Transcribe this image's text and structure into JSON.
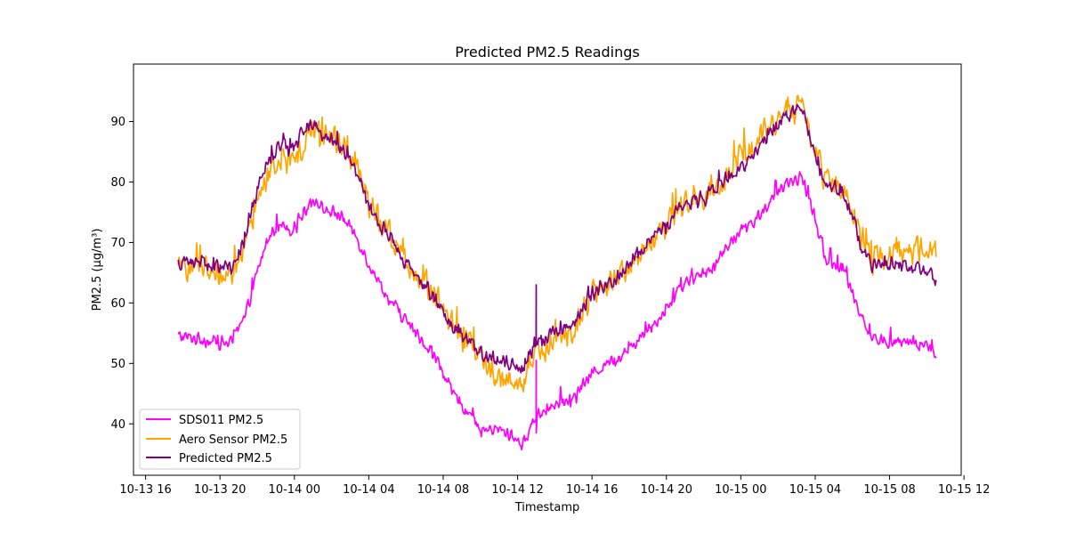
{
  "chart_data": {
    "type": "line",
    "title": "Predicted PM2.5 Readings",
    "xlabel": "Timestamp",
    "ylabel": "PM2.5 (µg/m³)",
    "x_unit": "hours",
    "xlim": [
      "10-13 15:21",
      "10-15 11:51"
    ],
    "ylim": [
      31.5,
      99.5
    ],
    "x_ticks": [
      {
        "t": "10-13 16:00",
        "label": "10-13 16"
      },
      {
        "t": "10-13 20:00",
        "label": "10-13 20"
      },
      {
        "t": "10-14 00:00",
        "label": "10-14 00"
      },
      {
        "t": "10-14 04:00",
        "label": "10-14 04"
      },
      {
        "t": "10-14 08:00",
        "label": "10-14 08"
      },
      {
        "t": "10-14 12:00",
        "label": "10-14 12"
      },
      {
        "t": "10-14 16:00",
        "label": "10-14 16"
      },
      {
        "t": "10-14 20:00",
        "label": "10-14 20"
      },
      {
        "t": "10-15 00:00",
        "label": "10-15 00"
      },
      {
        "t": "10-15 04:00",
        "label": "10-15 04"
      },
      {
        "t": "10-15 08:00",
        "label": "10-15 08"
      },
      {
        "t": "10-15 12:00",
        "label": "10-15 12"
      }
    ],
    "y_ticks": [
      40,
      50,
      60,
      70,
      80,
      90
    ],
    "grid": false,
    "legend_position": "lower-left",
    "series": [
      {
        "name": "SDS011 PM2.5",
        "color": "#ff00ff",
        "noise": 1.3,
        "points": [
          [
            "10-13 17:45",
            54.5
          ],
          [
            "10-13 19:00",
            54.0
          ],
          [
            "10-13 20:15",
            53.3
          ],
          [
            "10-13 20:40",
            53.5
          ],
          [
            "10-13 21:20",
            57.5
          ],
          [
            "10-13 22:00",
            65.0
          ],
          [
            "10-13 22:30",
            70.0
          ],
          [
            "10-13 23:00",
            72.5
          ],
          [
            "10-13 23:30",
            73.0
          ],
          [
            "10-13 23:50",
            72.0
          ],
          [
            "10-14 00:30",
            75.0
          ],
          [
            "10-14 01:00",
            77.5
          ],
          [
            "10-14 01:30",
            75.5
          ],
          [
            "10-14 02:30",
            74.5
          ],
          [
            "10-14 03:20",
            71.0
          ],
          [
            "10-14 04:00",
            66.5
          ],
          [
            "10-14 05:00",
            61.0
          ],
          [
            "10-14 06:00",
            57.0
          ],
          [
            "10-14 06:30",
            55.0
          ],
          [
            "10-14 07:30",
            51.5
          ],
          [
            "10-14 08:30",
            45.0
          ],
          [
            "10-14 09:30",
            41.5
          ],
          [
            "10-14 10:00",
            39.0
          ],
          [
            "10-14 11:00",
            39.0
          ],
          [
            "10-14 12:00",
            37.5
          ],
          [
            "10-14 12:15",
            36.0
          ],
          [
            "10-14 12:30",
            38.0
          ],
          [
            "10-14 13:00",
            41.5
          ],
          [
            "10-14 14:00",
            43.0
          ],
          [
            "10-14 15:00",
            44.0
          ],
          [
            "10-14 16:00",
            48.5
          ],
          [
            "10-14 17:00",
            50.0
          ],
          [
            "10-14 18:00",
            52.5
          ],
          [
            "10-14 19:00",
            55.5
          ],
          [
            "10-14 20:00",
            59.0
          ],
          [
            "10-14 21:00",
            63.5
          ],
          [
            "10-14 22:00",
            64.5
          ],
          [
            "10-14 23:00",
            68.0
          ],
          [
            "10-15 00:00",
            72.0
          ],
          [
            "10-15 00:45",
            73.5
          ],
          [
            "10-15 01:30",
            76.5
          ],
          [
            "10-15 02:30",
            79.5
          ],
          [
            "10-15 03:15",
            81.0
          ],
          [
            "10-15 04:00",
            74.0
          ],
          [
            "10-15 04:30",
            67.5
          ],
          [
            "10-15 05:30",
            65.5
          ],
          [
            "10-15 06:30",
            58.0
          ],
          [
            "10-15 07:00",
            54.0
          ],
          [
            "10-15 08:00",
            53.5
          ],
          [
            "10-15 09:00",
            53.5
          ],
          [
            "10-15 10:00",
            53.0
          ],
          [
            "10-15 10:30",
            51.5
          ]
        ],
        "spikes": [
          {
            "t": "10-14 13:00",
            "min": 38.5,
            "max": 50.5
          }
        ]
      },
      {
        "name": "Aero Sensor PM2.5",
        "color": "#ffa500",
        "noise": 2.6,
        "points": [
          [
            "10-13 17:45",
            65.5
          ],
          [
            "10-13 19:00",
            66.5
          ],
          [
            "10-13 20:15",
            64.5
          ],
          [
            "10-13 20:40",
            65.0
          ],
          [
            "10-13 21:20",
            68.5
          ],
          [
            "10-13 22:00",
            76.0
          ],
          [
            "10-13 22:30",
            80.5
          ],
          [
            "10-13 23:00",
            83.0
          ],
          [
            "10-13 23:30",
            84.0
          ],
          [
            "10-13 23:50",
            82.5
          ],
          [
            "10-14 00:30",
            86.5
          ],
          [
            "10-14 01:00",
            89.5
          ],
          [
            "10-14 01:30",
            87.5
          ],
          [
            "10-14 02:30",
            86.5
          ],
          [
            "10-14 03:20",
            83.0
          ],
          [
            "10-14 04:00",
            76.0
          ],
          [
            "10-14 05:00",
            72.0
          ],
          [
            "10-14 06:00",
            67.0
          ],
          [
            "10-14 06:30",
            65.0
          ],
          [
            "10-14 07:30",
            62.0
          ],
          [
            "10-14 08:30",
            56.0
          ],
          [
            "10-14 09:30",
            53.0
          ],
          [
            "10-14 10:00",
            50.5
          ],
          [
            "10-14 11:00",
            48.0
          ],
          [
            "10-14 12:00",
            46.5
          ],
          [
            "10-14 12:15",
            45.0
          ],
          [
            "10-14 12:30",
            48.0
          ],
          [
            "10-14 13:00",
            52.0
          ],
          [
            "10-14 14:00",
            53.5
          ],
          [
            "10-14 15:00",
            55.5
          ],
          [
            "10-14 16:00",
            61.5
          ],
          [
            "10-14 17:00",
            63.5
          ],
          [
            "10-14 18:00",
            66.0
          ],
          [
            "10-14 19:00",
            69.5
          ],
          [
            "10-14 20:00",
            73.0
          ],
          [
            "10-14 21:00",
            76.5
          ],
          [
            "10-14 22:00",
            77.5
          ],
          [
            "10-14 23:00",
            80.0
          ],
          [
            "10-15 00:00",
            84.0
          ],
          [
            "10-15 00:45",
            86.0
          ],
          [
            "10-15 01:30",
            89.5
          ],
          [
            "10-15 02:30",
            91.5
          ],
          [
            "10-15 03:15",
            92.5
          ],
          [
            "10-15 04:00",
            86.0
          ],
          [
            "10-15 04:30",
            80.5
          ],
          [
            "10-15 05:30",
            79.5
          ],
          [
            "10-15 06:30",
            71.0
          ],
          [
            "10-15 07:00",
            67.0
          ],
          [
            "10-15 08:00",
            68.0
          ],
          [
            "10-15 09:00",
            68.5
          ],
          [
            "10-15 10:00",
            69.0
          ],
          [
            "10-15 10:30",
            68.0
          ]
        ],
        "spikes": []
      },
      {
        "name": "Predicted PM2.5",
        "color": "#800080",
        "noise": 1.5,
        "points": [
          [
            "10-13 17:45",
            66.5
          ],
          [
            "10-13 19:00",
            67.0
          ],
          [
            "10-13 20:15",
            65.5
          ],
          [
            "10-13 20:40",
            66.0
          ],
          [
            "10-13 21:20",
            70.5
          ],
          [
            "10-13 22:00",
            78.5
          ],
          [
            "10-13 22:30",
            83.0
          ],
          [
            "10-13 23:00",
            85.0
          ],
          [
            "10-13 23:30",
            86.0
          ],
          [
            "10-13 23:50",
            85.0
          ],
          [
            "10-14 00:30",
            88.5
          ],
          [
            "10-14 01:00",
            90.0
          ],
          [
            "10-14 01:30",
            88.0
          ],
          [
            "10-14 02:30",
            86.0
          ],
          [
            "10-14 03:20",
            82.0
          ],
          [
            "10-14 04:00",
            75.5
          ],
          [
            "10-14 05:00",
            71.5
          ],
          [
            "10-14 06:00",
            66.5
          ],
          [
            "10-14 06:30",
            65.0
          ],
          [
            "10-14 07:30",
            61.0
          ],
          [
            "10-14 08:30",
            56.0
          ],
          [
            "10-14 09:30",
            53.5
          ],
          [
            "10-14 10:00",
            51.5
          ],
          [
            "10-14 11:00",
            50.5
          ],
          [
            "10-14 12:00",
            49.5
          ],
          [
            "10-14 12:15",
            48.0
          ],
          [
            "10-14 12:30",
            50.5
          ],
          [
            "10-14 13:00",
            53.5
          ],
          [
            "10-14 14:00",
            55.0
          ],
          [
            "10-14 15:00",
            56.5
          ],
          [
            "10-14 16:00",
            61.5
          ],
          [
            "10-14 17:00",
            63.5
          ],
          [
            "10-14 18:00",
            66.5
          ],
          [
            "10-14 19:00",
            70.0
          ],
          [
            "10-14 20:00",
            73.0
          ],
          [
            "10-14 21:00",
            76.5
          ],
          [
            "10-14 22:00",
            77.0
          ],
          [
            "10-14 23:00",
            80.0
          ],
          [
            "10-15 00:00",
            82.5
          ],
          [
            "10-15 00:45",
            85.0
          ],
          [
            "10-15 01:30",
            88.0
          ],
          [
            "10-15 02:30",
            91.0
          ],
          [
            "10-15 03:15",
            92.5
          ],
          [
            "10-15 04:00",
            85.0
          ],
          [
            "10-15 04:30",
            80.0
          ],
          [
            "10-15 05:30",
            78.5
          ],
          [
            "10-15 06:30",
            69.5
          ],
          [
            "10-15 07:00",
            66.0
          ],
          [
            "10-15 08:00",
            66.5
          ],
          [
            "10-15 09:00",
            66.0
          ],
          [
            "10-15 10:00",
            65.5
          ],
          [
            "10-15 10:30",
            64.0
          ]
        ],
        "spikes": [
          {
            "t": "10-14 13:00",
            "min": 54.0,
            "max": 63.0
          }
        ]
      }
    ]
  }
}
